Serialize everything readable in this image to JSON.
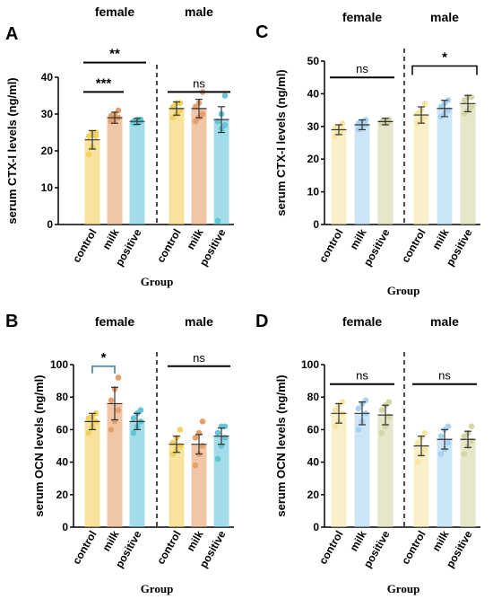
{
  "chart_data": [
    {
      "panel": "A",
      "type": "bar",
      "ylabel": "serum CTX-I levels (ng/ml)",
      "xlabel": "Group",
      "ylim": [
        0,
        40
      ],
      "yticks": [
        0,
        10,
        20,
        30,
        40
      ],
      "categories": [
        "control",
        "milk",
        "positive",
        "control",
        "milk",
        "positive"
      ],
      "group_labels": [
        "female",
        "male"
      ],
      "colors": [
        "#f2d15c",
        "#e6a06a",
        "#63c5d8",
        "#f2d15c",
        "#e6a06a",
        "#63c5d8"
      ],
      "values": [
        23,
        29,
        28,
        31.5,
        31.5,
        28.5
      ],
      "errors": [
        2.5,
        1.5,
        0.8,
        1.8,
        2.5,
        3.5
      ],
      "points": [
        [
          19,
          21,
          24,
          24,
          25,
          25
        ],
        [
          28,
          28.5,
          29,
          29.5,
          30,
          31
        ],
        [
          27.5,
          27.5,
          28,
          28,
          28.5,
          28.5
        ],
        [
          29,
          30,
          31,
          32,
          33,
          33
        ],
        [
          28,
          29,
          30,
          32,
          33,
          36
        ],
        [
          1,
          26,
          27,
          28,
          30,
          35
        ]
      ],
      "significance": [
        {
          "text": "***",
          "from": 0,
          "to": 1,
          "y": 36
        },
        {
          "text": "**",
          "from": 0,
          "to": 2,
          "y": 44
        },
        {
          "text": "ns",
          "from": 3,
          "to": 5,
          "y": 36
        }
      ]
    },
    {
      "panel": "C",
      "type": "bar",
      "ylabel": "serum CTX-I levels (ng/ml)",
      "xlabel": "Group",
      "ylim": [
        0,
        50
      ],
      "yticks": [
        0,
        10,
        20,
        30,
        40,
        50
      ],
      "categories": [
        "control",
        "milk",
        "positive",
        "control",
        "milk",
        "positive"
      ],
      "group_labels": [
        "female",
        "male"
      ],
      "colors": [
        "#f5e6a3",
        "#a9d2f0",
        "#d5d6a7",
        "#f5e6a3",
        "#a9d2f0",
        "#d5d6a7"
      ],
      "values": [
        29,
        30.5,
        31.5,
        33.5,
        35.5,
        37
      ],
      "errors": [
        1.5,
        1.5,
        1,
        2.5,
        2.5,
        2.5
      ],
      "points": [
        [
          27,
          28,
          29,
          29.5,
          30,
          31
        ],
        [
          29,
          30,
          30.5,
          31,
          31.5,
          32
        ],
        [
          31,
          31,
          31.5,
          31.5,
          32,
          32
        ],
        [
          31,
          32,
          33,
          34,
          35,
          37
        ],
        [
          33,
          34,
          35,
          36,
          37,
          38
        ],
        [
          34,
          35,
          36,
          38,
          39,
          39
        ]
      ],
      "significance": [
        {
          "text": "ns",
          "from": 0,
          "to": 2,
          "y": 45
        },
        {
          "text": "*",
          "from": 3,
          "to": 5,
          "y": 48.5
        }
      ]
    },
    {
      "panel": "B",
      "type": "bar",
      "ylabel": "serum OCN levels (ng/ml)",
      "xlabel": "Group",
      "ylim": [
        0,
        100
      ],
      "yticks": [
        0,
        20,
        40,
        60,
        80,
        100
      ],
      "categories": [
        "control",
        "milk",
        "positive",
        "control",
        "milk",
        "positive"
      ],
      "group_labels": [
        "female",
        "male"
      ],
      "colors": [
        "#f2d15c",
        "#e6a06a",
        "#63c5d8",
        "#f2d15c",
        "#e6a06a",
        "#63c5d8"
      ],
      "values": [
        65,
        76,
        65,
        51,
        51,
        56
      ],
      "errors": [
        5,
        10,
        5,
        5,
        6,
        5
      ],
      "points": [
        [
          58,
          62,
          65,
          67,
          68,
          70
        ],
        [
          60,
          65,
          72,
          78,
          85,
          92
        ],
        [
          58,
          62,
          65,
          67,
          70,
          72
        ],
        [
          45,
          48,
          50,
          52,
          55,
          60
        ],
        [
          38,
          45,
          50,
          55,
          58,
          65
        ],
        [
          42,
          50,
          55,
          58,
          62,
          62
        ]
      ],
      "significance": [
        {
          "text": "*",
          "from": 0,
          "to": 1,
          "y": 99,
          "bracket": true
        },
        {
          "text": "ns",
          "from": 3,
          "to": 5,
          "y": 99
        }
      ]
    },
    {
      "panel": "D",
      "type": "bar",
      "ylabel": "serum OCN levels (ng/ml)",
      "xlabel": "Group",
      "ylim": [
        0,
        100
      ],
      "yticks": [
        0,
        20,
        40,
        60,
        80,
        100
      ],
      "categories": [
        "control",
        "milk",
        "positive",
        "control",
        "milk",
        "positive"
      ],
      "group_labels": [
        "female",
        "male"
      ],
      "colors": [
        "#f5e6a3",
        "#a9d2f0",
        "#d5d6a7",
        "#f5e6a3",
        "#a9d2f0",
        "#d5d6a7"
      ],
      "values": [
        70,
        70,
        69,
        50,
        54,
        54
      ],
      "errors": [
        6,
        7,
        6,
        6,
        6,
        5
      ],
      "points": [
        [
          62,
          65,
          70,
          72,
          75,
          77
        ],
        [
          60,
          65,
          70,
          73,
          76,
          78
        ],
        [
          58,
          62,
          68,
          72,
          75,
          77
        ],
        [
          40,
          45,
          48,
          52,
          55,
          58
        ],
        [
          45,
          48,
          52,
          56,
          60,
          62
        ],
        [
          45,
          50,
          53,
          56,
          58,
          62
        ]
      ],
      "significance": [
        {
          "text": "ns",
          "from": 0,
          "to": 2,
          "y": 88
        },
        {
          "text": "ns",
          "from": 3,
          "to": 5,
          "y": 88
        }
      ]
    }
  ]
}
